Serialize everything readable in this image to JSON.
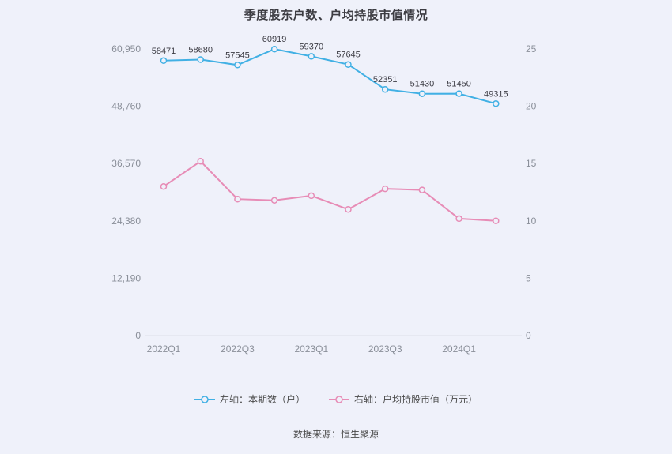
{
  "title": "季度股东户数、户均持股市值情况",
  "footer": "数据来源：恒生聚源",
  "colors": {
    "background": "#eff1fa",
    "left_series": "#41b0e4",
    "right_series": "#e78cb6",
    "axis_line": "#dcdfe8"
  },
  "legend": [
    {
      "label": "左轴：本期数（户）",
      "color": "#41b0e4"
    },
    {
      "label": "右轴：户均持股市值（万元）",
      "color": "#e78cb6"
    }
  ],
  "chart_data": {
    "type": "line",
    "title": "季度股东户数、户均持股市值情况",
    "x": [
      "2022Q1",
      "2022Q2",
      "2022Q3",
      "2022Q4",
      "2023Q1",
      "2023Q2",
      "2023Q3",
      "2023Q4",
      "2024Q1",
      "2024Q2"
    ],
    "x_tick_labels": [
      "2022Q1",
      "2022Q3",
      "2023Q1",
      "2023Q3",
      "2024Q1"
    ],
    "series": [
      {
        "name": "左轴：本期数（户）",
        "axis": "left",
        "color": "#41b0e4",
        "values": [
          58471,
          58680,
          57545,
          60919,
          59370,
          57645,
          52351,
          51430,
          51450,
          49315
        ],
        "data_labels": true
      },
      {
        "name": "右轴：户均持股市值（万元）",
        "axis": "right",
        "color": "#e78cb6",
        "values": [
          13.0,
          15.2,
          11.9,
          11.8,
          12.2,
          11.0,
          12.8,
          12.7,
          10.2,
          10.0
        ],
        "data_labels": false
      }
    ],
    "left_axis": {
      "max": 60950,
      "ticks": [
        0,
        12190,
        24380,
        36570,
        48760,
        60950
      ],
      "labels": [
        "0",
        "12,190",
        "24,380",
        "36,570",
        "48,760",
        "60,950"
      ]
    },
    "right_axis": {
      "max": 25,
      "ticks": [
        0,
        5,
        10,
        15,
        20,
        25
      ],
      "labels": [
        "0",
        "5",
        "10",
        "15",
        "20",
        "25"
      ]
    },
    "grid": false,
    "legend_position": "bottom"
  }
}
